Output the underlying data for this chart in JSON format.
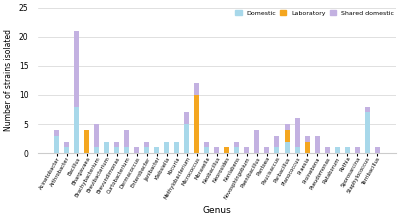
{
  "genera": [
    "Acinetobacter",
    "Arthrobacter",
    "Bacillus",
    "Bhargavaea",
    "Brachybacterium",
    "Brevibacterium",
    "Brevundimonas",
    "Curtobacterium",
    "Dermacoccus",
    "Enterobacter",
    "Janibacter",
    "Klebsiella",
    "Kocuria",
    "Methylobacterium",
    "Micrococcus",
    "Moraxella",
    "Neobacillus",
    "Neorosides",
    "Nonlabens",
    "Novosphingobium",
    "Paenibacillus",
    "Pantoea",
    "Paucisaccus",
    "Parbacillus",
    "Planococcus",
    "Praesia",
    "Proinebona",
    "Pseudomonas",
    "Rataborum",
    "Rothia",
    "Sporosarcina",
    "Staphylococcus",
    "Terribacillus"
  ],
  "domestic": [
    3,
    1,
    8,
    0,
    1,
    2,
    1,
    1,
    0,
    1,
    1,
    2,
    2,
    5,
    0,
    1,
    0,
    0,
    1,
    0,
    0,
    0,
    1,
    2,
    1,
    0,
    0,
    0,
    1,
    1,
    0,
    7,
    0
  ],
  "laboratory": [
    0,
    0,
    0,
    4,
    0,
    0,
    0,
    0,
    0,
    0,
    0,
    0,
    0,
    0,
    10,
    0,
    0,
    1,
    0,
    0,
    0,
    0,
    0,
    2,
    0,
    2,
    0,
    0,
    0,
    0,
    0,
    0,
    0
  ],
  "shared_domestic": [
    1,
    1,
    13,
    0,
    4,
    0,
    1,
    3,
    1,
    1,
    0,
    0,
    0,
    2,
    2,
    1,
    1,
    0,
    1,
    1,
    4,
    1,
    2,
    1,
    5,
    1,
    3,
    1,
    0,
    0,
    1,
    1,
    1
  ],
  "domestic_color": "#a8d8ea",
  "laboratory_color": "#f4a620",
  "shared_domestic_color": "#c3b1e1",
  "ylabel": "Number of strains isolated",
  "xlabel": "Genus",
  "ylim": [
    0,
    25
  ],
  "yticks": [
    0,
    5,
    10,
    15,
    20,
    25
  ],
  "legend_labels": [
    "Domestic",
    "Laboratory",
    "Shared domestic"
  ]
}
